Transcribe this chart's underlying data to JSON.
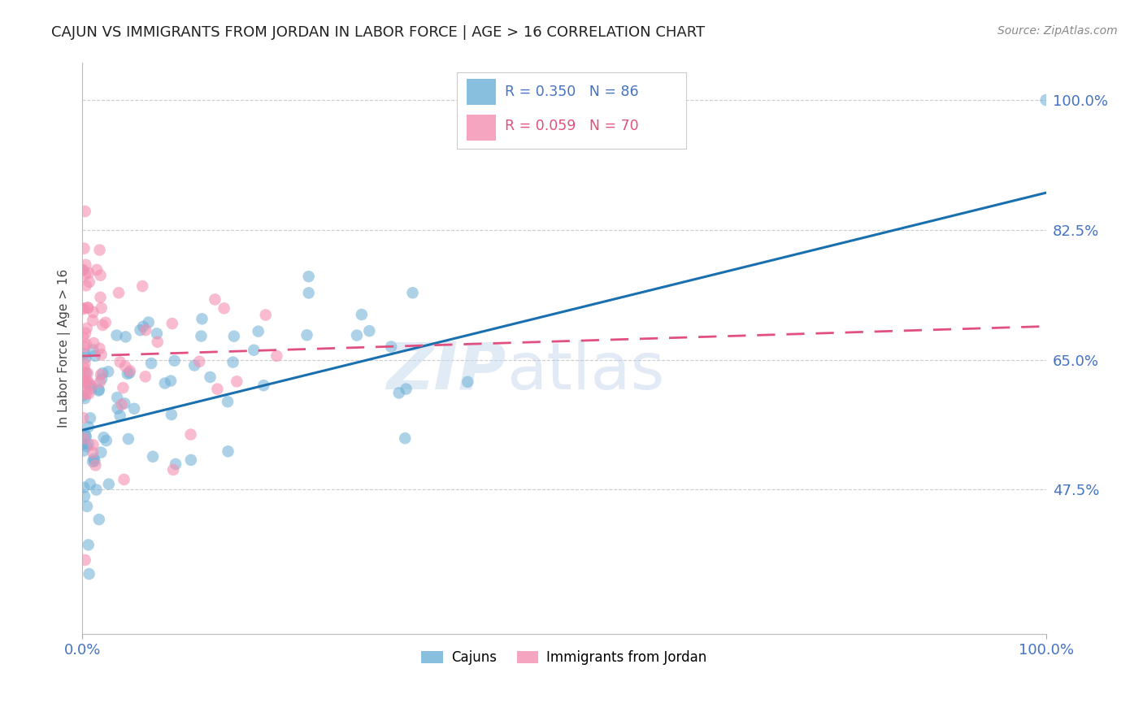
{
  "title": "CAJUN VS IMMIGRANTS FROM JORDAN IN LABOR FORCE | AGE > 16 CORRELATION CHART",
  "source": "Source: ZipAtlas.com",
  "ylabel": "In Labor Force | Age > 16",
  "xlim": [
    0.0,
    1.0
  ],
  "ylim": [
    0.28,
    1.05
  ],
  "ytick_vals": [
    0.475,
    0.65,
    0.825,
    1.0
  ],
  "ytick_labels": [
    "47.5%",
    "65.0%",
    "82.5%",
    "100.0%"
  ],
  "xtick_vals": [
    0.0,
    1.0
  ],
  "xtick_labels": [
    "0.0%",
    "100.0%"
  ],
  "watermark_zip": "ZIP",
  "watermark_atlas": "atlas",
  "legend_cajun_R": "R = 0.350",
  "legend_cajun_N": "N = 86",
  "legend_jordan_R": "R = 0.059",
  "legend_jordan_N": "N = 70",
  "cajun_color": "#6baed6",
  "jordan_color": "#f48fb1",
  "cajun_line_color": "#1a6faf",
  "jordan_line_color": "#e05080",
  "tick_label_color": "#4472c4",
  "background_color": "#ffffff",
  "title_fontsize": 13,
  "cajun_trend_x": [
    0.0,
    1.0
  ],
  "cajun_trend_y": [
    0.555,
    0.875
  ],
  "jordan_trend_x": [
    0.0,
    1.0
  ],
  "jordan_trend_y": [
    0.655,
    0.695
  ]
}
